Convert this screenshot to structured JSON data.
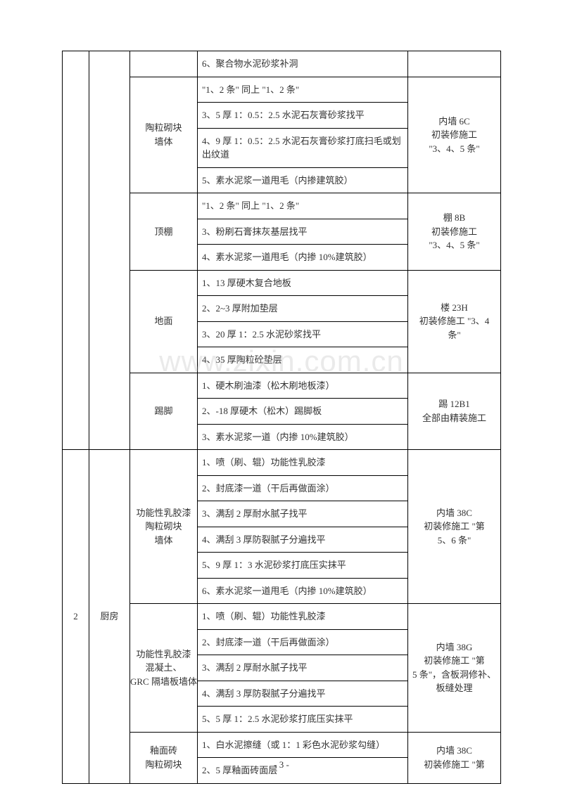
{
  "watermark": "www.zixin.com.cn",
  "footer": "- 3 -",
  "groups": [
    {
      "col1": "",
      "col1_rowspan": 15,
      "col2": "",
      "col2_rowspan": 15,
      "blocks": [
        {
          "col3": "",
          "col3_rowspan": 1,
          "col5": "",
          "col5_rowspan": 1,
          "rows": [
            "6、聚合物水泥砂浆补洞"
          ]
        },
        {
          "col3": "陶粒砌块\n墙体",
          "col3_rowspan": 4,
          "col5": "内墙 6C\n初装修施工\n\"3、4、5 条\"",
          "col5_rowspan": 4,
          "rows": [
            "\"1、2 条\" 同上 \"1、2 条\"",
            "3、5 厚 1：0.5：2.5 水泥石灰膏砂浆找平",
            "4、9 厚 1：0.5：2.5 水泥石灰膏砂浆打底扫毛或划出纹道",
            "5、素水泥浆一道甩毛（内掺建筑胶）"
          ]
        },
        {
          "col3": "顶棚",
          "col3_rowspan": 3,
          "col5": "棚 8B\n初装修施工\n\"3、4、5 条\"",
          "col5_rowspan": 3,
          "rows": [
            "\"1、2 条\" 同上 \"1、2 条\"",
            "3、粉刷石膏抹灰基层找平",
            "4、素水泥浆一道甩毛（内掺 10%建筑胶）"
          ]
        },
        {
          "col3": "地面",
          "col3_rowspan": 4,
          "col5": "楼 23H\n初装修施工 \"3、4\n条\"",
          "col5_rowspan": 4,
          "rows": [
            "1、13 厚硬木复合地板",
            "2、2~3 厚附加垫层",
            "3、20 厚 1：2.5 水泥砂浆找平",
            "4、35 厚陶粒砼垫层"
          ]
        },
        {
          "col3": "踢脚",
          "col3_rowspan": 3,
          "col5": "踢 12B1\n全部由精装施工",
          "col5_rowspan": 3,
          "rows": [
            "1、硬木刷油漆（松木刷地板漆）",
            "2、-18 厚硬木（松木）踢脚板",
            "3、素水泥浆一道（内掺 10%建筑胶）"
          ]
        }
      ]
    },
    {
      "col1": "2",
      "col1_rowspan": 13,
      "col2": "厨房",
      "col2_rowspan": 13,
      "blocks": [
        {
          "col3": "功能性乳胶漆\n陶粒砌块\n墙体",
          "col3_rowspan": 6,
          "col5": "内墙 38C\n初装修施工 \"第\n5、6 条\"",
          "col5_rowspan": 6,
          "rows": [
            "1、喷（刷、辊）功能性乳胶漆",
            "2、封底漆一道（干后再做面涂）",
            "3、满刮 2 厚耐水腻子找平",
            "4、满刮 3 厚防裂腻子分遍找平",
            "5、9 厚 1：3 水泥砂浆打底压实抹平",
            "6、素水泥浆一道甩毛（内掺 10%建筑胶）"
          ]
        },
        {
          "col3": "功能性乳胶漆\n混凝土、\nGRC 隔墙板墙体",
          "col3_rowspan": 5,
          "col5": "内墙 38G\n初装修施工 \"第\n5 条\"，含板洞修补、\n板缝处理",
          "col5_rowspan": 5,
          "rows": [
            "1、喷（刷、辊）功能性乳胶漆",
            "2、封底漆一道（干后再做面涂）",
            "3、满刮 2 厚耐水腻子找平",
            "4、满刮 3 厚防裂腻子分遍找平",
            "5、5 厚 1：2.5 水泥砂浆打底压实抹平"
          ]
        },
        {
          "col3": "釉面砖\n陶粒砌块",
          "col3_rowspan": 2,
          "col5": "内墙 38C\n初装修施工 \"第",
          "col5_rowspan": 2,
          "rows": [
            "1、白水泥擦缝（或 1：1 彩色水泥砂浆勾缝）",
            "2、5 厚釉面砖面层"
          ]
        }
      ]
    }
  ]
}
